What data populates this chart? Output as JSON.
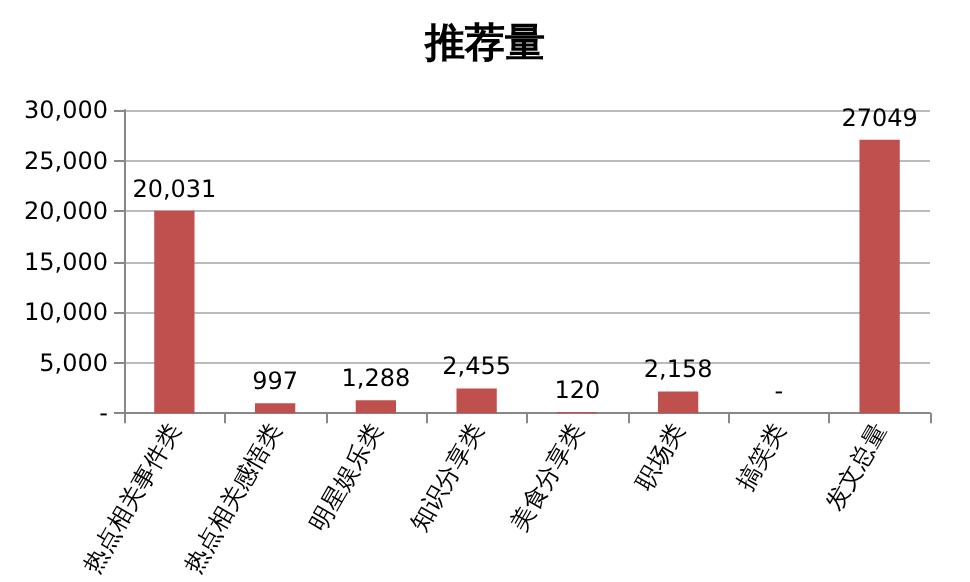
{
  "chart_data": {
    "type": "bar",
    "title": "推荐量",
    "categories": [
      "热点相关事件类",
      "热点相关感悟类",
      "明星娱乐类",
      "知识分享类",
      "美食分享类",
      "职场类",
      "搞笑类",
      "发文总量"
    ],
    "values": [
      20031,
      997,
      1288,
      2455,
      120,
      2158,
      0,
      27049
    ],
    "value_labels": [
      "20,031",
      "997",
      "1,288",
      "2,455",
      "120",
      "2,158",
      "-",
      "27049"
    ],
    "color": "#c0504d",
    "ylim": [
      0,
      30000
    ],
    "yticks": [
      {
        "value": 0,
        "label": "-"
      },
      {
        "value": 5000,
        "label": "5,000"
      },
      {
        "value": 10000,
        "label": "10,000"
      },
      {
        "value": 15000,
        "label": "15,000"
      },
      {
        "value": 20000,
        "label": "20,000"
      },
      {
        "value": 25000,
        "label": "25,000"
      },
      {
        "value": 30000,
        "label": "30,000"
      }
    ],
    "grid": "y"
  }
}
